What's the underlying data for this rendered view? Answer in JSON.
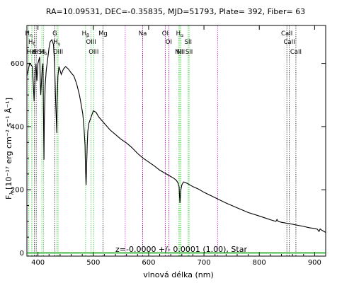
{
  "chart_data": {
    "type": "line",
    "title": "RA=10.09531, DEC=-0.35835, MJD=51793, Plate= 392, Fiber= 63",
    "xlabel": "vlnová délka (nm)",
    "ylabel_parts": {
      "flux": "F",
      "lambda": "λ",
      "units": "[10⁻¹⁷ erg cm⁻² s⁻¹ Å⁻¹]"
    },
    "annotation": "z=-0.0000 +/- 0.0001 (1.00), Star",
    "xlim": [
      380,
      920
    ],
    "ylim": [
      -10,
      720
    ],
    "x_ticks": [
      400,
      500,
      600,
      700,
      800,
      900
    ],
    "y_ticks": [
      0,
      200,
      400,
      600
    ],
    "series": [
      {
        "color": "#000000",
        "x": [
          380,
          385,
          390,
          393,
          395,
          396.5,
          398,
          400,
          403,
          405,
          406,
          407,
          408,
          409,
          410,
          410.8,
          411.5,
          413,
          415,
          418,
          420,
          422,
          425,
          428,
          430,
          432,
          434,
          434.5,
          436,
          438,
          442,
          446,
          450,
          455,
          460,
          465,
          470,
          475,
          478,
          481,
          483,
          485,
          486,
          487,
          488,
          489,
          490,
          492,
          495,
          500,
          505,
          510,
          520,
          530,
          540,
          550,
          560,
          570,
          580,
          590,
          600,
          610,
          620,
          630,
          640,
          645,
          650,
          653,
          655,
          656,
          656.5,
          657,
          658,
          660,
          663,
          665,
          670,
          680,
          690,
          700,
          720,
          740,
          760,
          780,
          800,
          820,
          830,
          832,
          834,
          840,
          860,
          880,
          890,
          900,
          905,
          908,
          910,
          913,
          920
        ],
        "y": [
          560,
          600,
          590,
          480,
          570,
          600,
          545,
          600,
          620,
          500,
          530,
          565,
          590,
          600,
          440,
          295,
          420,
          530,
          580,
          620,
          650,
          668,
          675,
          660,
          600,
          480,
          380,
          470,
          560,
          590,
          565,
          582,
          590,
          582,
          570,
          560,
          535,
          500,
          470,
          440,
          400,
          340,
          265,
          215,
          280,
          340,
          385,
          410,
          425,
          450,
          445,
          430,
          410,
          390,
          375,
          360,
          348,
          333,
          315,
          300,
          288,
          276,
          262,
          252,
          242,
          237,
          230,
          222,
          210,
          175,
          158,
          172,
          198,
          215,
          225,
          224,
          220,
          210,
          202,
          192,
          175,
          158,
          143,
          128,
          117,
          105,
          100,
          106,
          100,
          97,
          91,
          84,
          80,
          77,
          75,
          68,
          76,
          72,
          65
        ]
      },
      {
        "color": "#00a000",
        "x": [
          380,
          920
        ],
        "y": [
          0,
          0
        ]
      }
    ],
    "emission_lines": [
      {
        "label": "H_η",
        "x": 383.5,
        "color": "#22cc22"
      },
      {
        "label": "H_ζ",
        "x": 388.9,
        "color": "#22cc22"
      },
      {
        "label": "K",
        "x": 393.4,
        "color": "#000000"
      },
      {
        "label": "H",
        "x": 396.8,
        "color": "#000000"
      },
      {
        "label": "HeI",
        "x": 388.9,
        "color": "#22cc22"
      },
      {
        "label": "SII",
        "x": 407.0,
        "color": "#22cc22"
      },
      {
        "label": "H_δ",
        "x": 410.2,
        "color": "#22cc22"
      },
      {
        "label": "G",
        "x": 430.5,
        "color": "#000000"
      },
      {
        "label": "H_γ",
        "x": 434.0,
        "color": "#22cc22"
      },
      {
        "label": "OIII",
        "x": 436.3,
        "color": "#22cc22"
      },
      {
        "label": "H_β",
        "x": 486.1,
        "color": "#22cc22"
      },
      {
        "label": "OIII",
        "x": 495.9,
        "color": "#22cc22"
      },
      {
        "label": "OIII",
        "x": 500.7,
        "color": "#22cc22"
      },
      {
        "label": "Mg",
        "x": 517.5,
        "color": "#000000"
      },
      {
        "label": "Na",
        "x": 589.3,
        "color": "#000000"
      },
      {
        "label": "OI",
        "x": 630.0,
        "color": "#000000"
      },
      {
        "label": "OI",
        "x": 636.4,
        "color": "#000000"
      },
      {
        "label": "NII",
        "x": 654.8,
        "color": "#22cc22"
      },
      {
        "label": "H_α",
        "x": 656.3,
        "color": "#22cc22"
      },
      {
        "label": "NII",
        "x": 658.3,
        "color": "#22cc22"
      },
      {
        "label": "SII",
        "x": 671.6,
        "color": "#22cc22"
      },
      {
        "label": "SII",
        "x": 673.1,
        "color": "#22cc22"
      },
      {
        "label": "CaII",
        "x": 849.8,
        "color": "#000000"
      },
      {
        "label": "CaII",
        "x": 854.2,
        "color": "#000000"
      },
      {
        "label": "CaII",
        "x": 866.2,
        "color": "#000000"
      }
    ],
    "magenta_lines": [
      557.7,
      589.0,
      630.0,
      636.4,
      725.0
    ]
  }
}
